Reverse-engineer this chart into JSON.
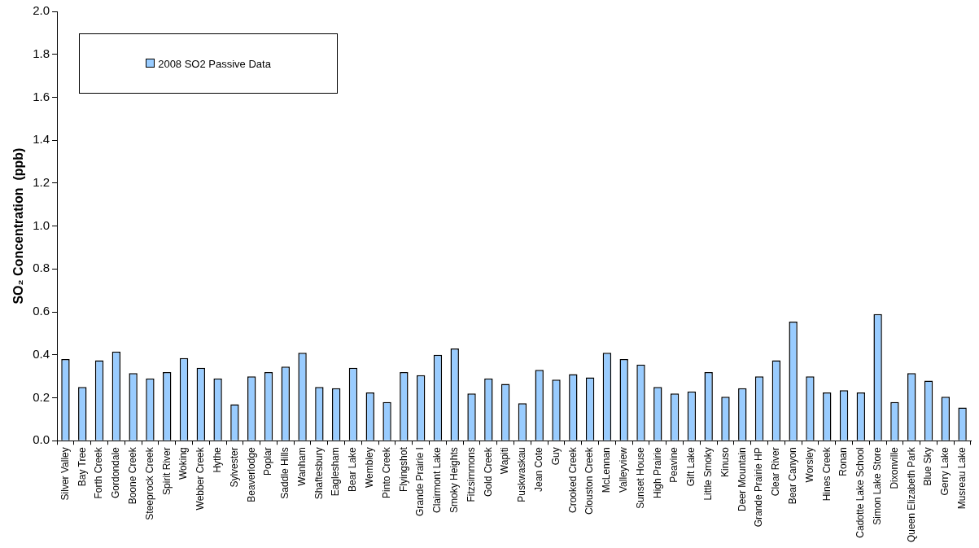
{
  "chart_data": {
    "type": "bar",
    "ylabel": "SO₂ Concentration  (ppb)",
    "categories": [
      "Silver Valley",
      "Bay Tree",
      "Forth Creek",
      "Gordondale",
      "Boone Creek",
      "Steeprock Creek",
      "Spirit River",
      "Woking",
      "Webber Creek",
      "Hythe",
      "Sylvester",
      "Beaverlodge",
      "Poplar",
      "Saddle Hills",
      "Wanham",
      "Shaftesbury",
      "Eaglesham",
      "Bear Lake",
      "Wembley",
      "Pinto Creek",
      "Flyingshot",
      "Grande Prairie I",
      "Clairmont Lake",
      "Smoky Heights",
      "Fitzsimmons",
      "Gold Creek",
      "Wapiti",
      "Puskwaskau",
      "Jean Cote",
      "Guy",
      "Crooked Creek",
      "Clouston Creek",
      "McLennan",
      "Valleyview",
      "Sunset House",
      "High Prairie",
      "Peavine",
      "Gift Lake",
      "Little Smoky",
      "Kinuso",
      "Deer Mountain",
      "Grande Prairie HP",
      "Clear River",
      "Bear Canyon",
      "Worsley",
      "Hines Creek",
      "Ronan",
      "Cadotte Lake School",
      "Simon Lake Store",
      "Dixonville",
      "Queen Elizabeth Park",
      "Blue Sky",
      "Gerry Lake",
      "Musreau Lake"
    ],
    "series": [
      {
        "name": "2008 SO2 Passive Data",
        "color": "#99ccff",
        "values": [
          0.38,
          0.25,
          0.375,
          0.415,
          0.315,
          0.29,
          0.32,
          0.385,
          0.34,
          0.29,
          0.17,
          0.3,
          0.32,
          0.345,
          0.41,
          0.25,
          0.245,
          0.34,
          0.225,
          0.18,
          0.32,
          0.305,
          0.4,
          0.43,
          0.22,
          0.29,
          0.265,
          0.175,
          0.33,
          0.285,
          0.31,
          0.295,
          0.41,
          0.38,
          0.355,
          0.25,
          0.22,
          0.23,
          0.32,
          0.205,
          0.245,
          0.3,
          0.375,
          0.555,
          0.3,
          0.225,
          0.235,
          0.225,
          0.59,
          0.18,
          0.315,
          0.28,
          0.205,
          0.155
        ]
      }
    ],
    "ylim": [
      0,
      2
    ],
    "yticks": [
      {
        "value": 0,
        "label": "0.0"
      },
      {
        "value": 0.2,
        "label": "0.2"
      },
      {
        "value": 0.4,
        "label": "0.4"
      },
      {
        "value": 0.6,
        "label": "0.6"
      },
      {
        "value": 0.8,
        "label": "0.8"
      },
      {
        "value": 1,
        "label": "1.0"
      },
      {
        "value": 1.2,
        "label": "1.2"
      },
      {
        "value": 1.4,
        "label": "1.4"
      },
      {
        "value": 1.6,
        "label": "1.6"
      },
      {
        "value": 1.8,
        "label": "1.8"
      },
      {
        "value": 2,
        "label": "2.0"
      }
    ],
    "grid": false,
    "legend": "top left"
  }
}
